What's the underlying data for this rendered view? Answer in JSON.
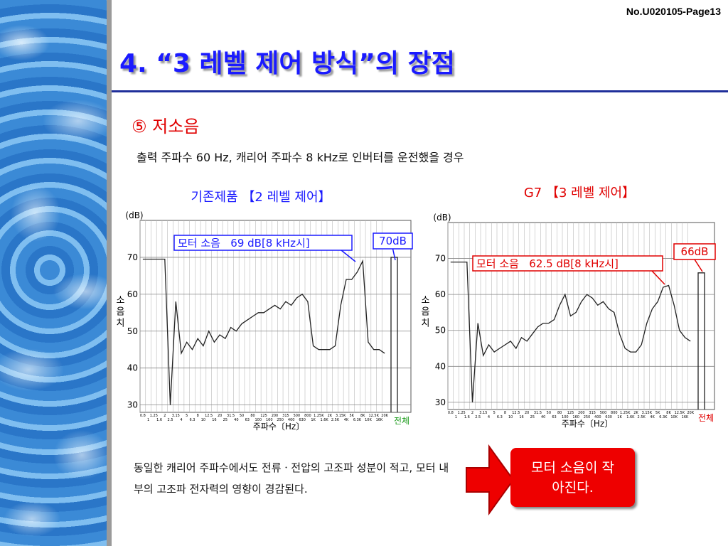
{
  "header": {
    "page_no": "No.U020105-Page13",
    "title": "4. “3 레벨 제어 방식”의 장점"
  },
  "section": "⑤ 저소음",
  "condition": "출력 주파수 60 Hz, 캐리어 주파수 8 kHz로 인버터를 운전했을 경우",
  "chart_data": [
    {
      "type": "line",
      "title": "기존제품 【2 레벨 제어】",
      "title_color": "#1a1aff",
      "y_unit": "(dB)",
      "y_label": "소음치",
      "x_label": "주파수〔Hz〕",
      "total_label": "전체",
      "total_color": "#1a9a1a",
      "annotation": "모터 소음   69 dB[8 kHz시]",
      "annotation_color": "#1a1aff",
      "overall_value": 70,
      "overall_label": "70dB",
      "ylim": [
        28,
        80
      ],
      "yticks": [
        30,
        40,
        50,
        60,
        70
      ],
      "color": "#222222",
      "categories": [
        "0.8",
        "1",
        "1.25",
        "1.6",
        "2",
        "2.5",
        "3.15",
        "4",
        "5",
        "6.3",
        "8",
        "10",
        "12.5",
        "16",
        "20",
        "25",
        "31.5",
        "40",
        "50",
        "63",
        "80",
        "100",
        "125",
        "160",
        "200",
        "250",
        "315",
        "400",
        "500",
        "630",
        "800",
        "1K",
        "1.25K",
        "1.6K",
        "2K",
        "2.5K",
        "3.15K",
        "4K",
        "5K",
        "6.3K",
        "8K",
        "10K",
        "12.5K",
        "16K",
        "20K"
      ],
      "values": [
        69.5,
        69.5,
        69.5,
        69.5,
        69.5,
        30,
        58,
        44,
        47,
        45,
        48,
        46,
        50,
        47,
        49,
        48,
        51,
        50,
        52,
        53,
        54,
        55,
        55,
        56,
        57,
        56,
        58,
        57,
        59,
        60,
        58,
        46,
        45,
        45,
        45,
        46,
        57,
        64,
        64,
        66,
        69,
        47,
        45,
        45,
        44
      ]
    },
    {
      "type": "line",
      "title": "G7 【3 레벨 제어】",
      "title_color": "#e00000",
      "y_unit": "(dB)",
      "y_label": "소음치",
      "x_label": "주파수〔Hz〕",
      "total_label": "전체",
      "total_color": "#e00000",
      "annotation": "모터 소음   62.5 dB[8 kHz시]",
      "annotation_color": "#e00000",
      "overall_value": 66,
      "overall_label": "66dB",
      "ylim": [
        28,
        80
      ],
      "yticks": [
        30,
        40,
        50,
        60,
        70
      ],
      "color": "#222222",
      "categories": [
        "0.8",
        "1",
        "1.25",
        "1.6",
        "2",
        "2.5",
        "3.15",
        "4",
        "5",
        "6.3",
        "8",
        "10",
        "12.5",
        "16",
        "20",
        "25",
        "31.5",
        "40",
        "50",
        "63",
        "80",
        "100",
        "125",
        "160",
        "200",
        "250",
        "315",
        "400",
        "500",
        "630",
        "800",
        "1K",
        "1.25K",
        "1.6K",
        "2K",
        "2.5K",
        "3.15K",
        "4K",
        "5K",
        "6.3K",
        "8K",
        "10K",
        "12.5K",
        "16K",
        "20K"
      ],
      "values": [
        69,
        69,
        69,
        69,
        30,
        52,
        43,
        46,
        44,
        45,
        46,
        47,
        45,
        48,
        47,
        49,
        51,
        52,
        52,
        53,
        57,
        60,
        54,
        55,
        58,
        60,
        59,
        57,
        58,
        56,
        55,
        49,
        45,
        44,
        44,
        46,
        52,
        56,
        58,
        62,
        62.5,
        57,
        50,
        48,
        47
      ]
    }
  ],
  "note": "동일한 캐리어 주파수에서도 전류ㆍ전압의 고조파 성분이 적고, 모터 내부의 고조파 전자력의 영향이 경감된다.",
  "callout": "모터 소음이 작아진다."
}
